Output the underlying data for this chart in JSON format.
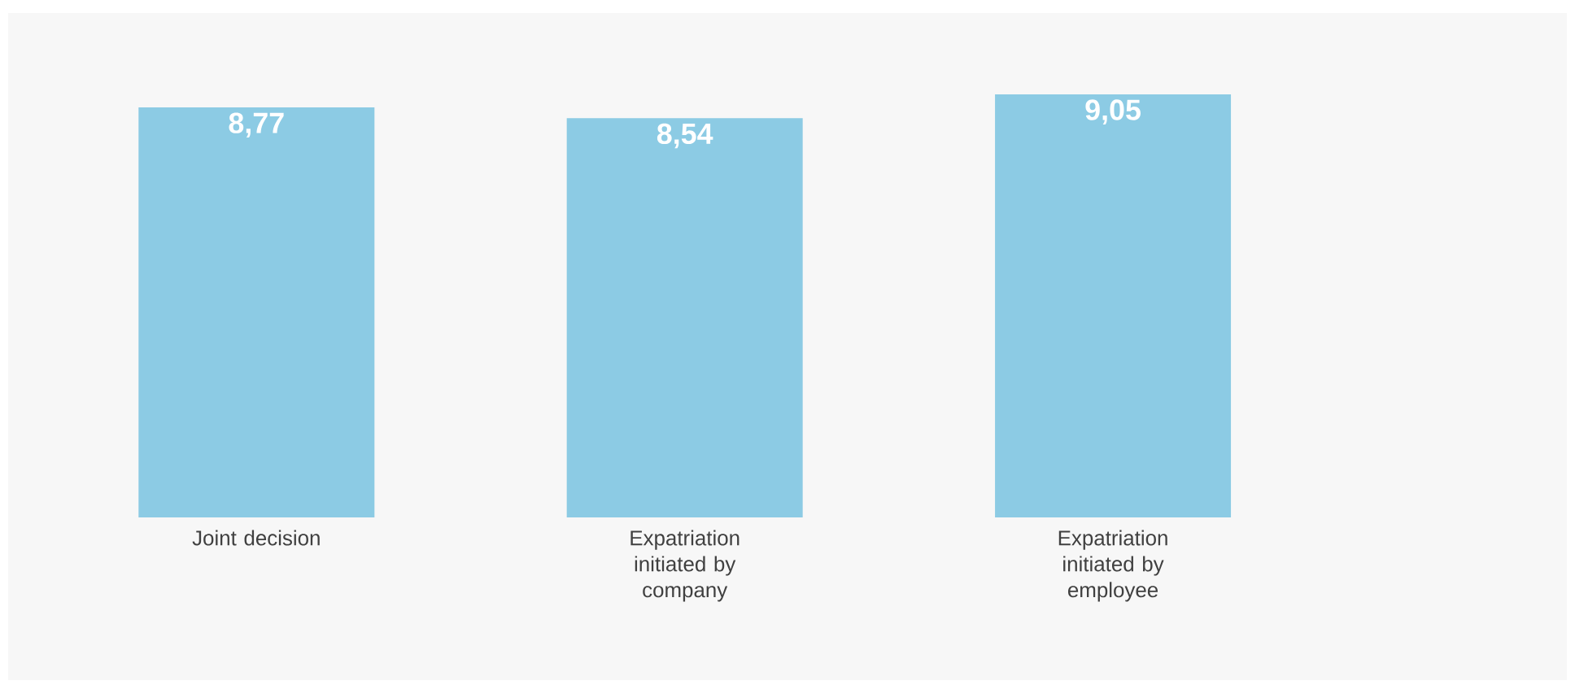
{
  "chart_data": {
    "type": "bar",
    "categories": [
      "Joint decision",
      "Expatriation initiated by company",
      "Expatriation initiated by employee"
    ],
    "values": [
      8.77,
      8.54,
      9.05
    ],
    "value_labels": [
      "8,77",
      "8,54",
      "9,05"
    ],
    "color": "#8ccbe4",
    "ylim": [
      0,
      9.05
    ],
    "tick_labels": "x"
  }
}
